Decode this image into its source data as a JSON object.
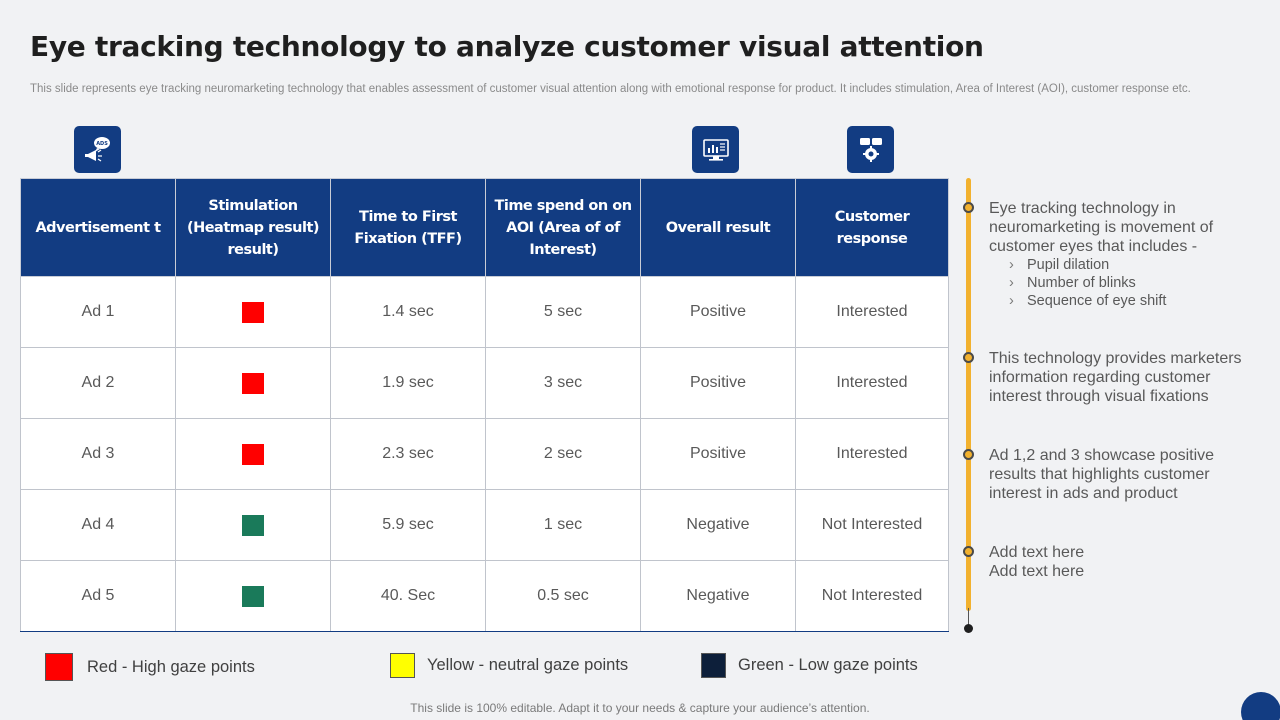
{
  "title": "Eye tracking technology to analyze customer visual attention",
  "subtitle": "This slide represents eye tracking neuromarketing technology that enables assessment of customer visual attention along with emotional response for product. It includes stimulation, Area of Interest (AOI),  customer response etc.",
  "table": {
    "headers": [
      "Advertisement t",
      "Stimulation (Heatmap result) result)",
      "Time to First Fixation (TFF)",
      "Time spend on on AOI (Area of of Interest)",
      "Overall result",
      "Customer response"
    ],
    "rows": [
      {
        "ad": "Ad 1",
        "color": "#ff0000",
        "tff": "1.4 sec",
        "aoi": "5 sec",
        "overall": "Positive",
        "response": "Interested"
      },
      {
        "ad": "Ad 2",
        "color": "#ff0000",
        "tff": "1.9 sec",
        "aoi": "3 sec",
        "overall": "Positive",
        "response": "Interested"
      },
      {
        "ad": "Ad 3",
        "color": "#ff0000",
        "tff": "2.3 sec",
        "aoi": "2 sec",
        "overall": "Positive",
        "response": "Interested"
      },
      {
        "ad": "Ad 4",
        "color": "#1a7a5a",
        "tff": "5.9 sec",
        "aoi": "1 sec",
        "overall": "Negative",
        "response": "Not Interested"
      },
      {
        "ad": "Ad 5",
        "color": "#1a7a5a",
        "tff": "40. Sec",
        "aoi": "0.5 sec",
        "overall": "Negative",
        "response": "Not Interested"
      }
    ]
  },
  "icons": [
    "megaphone-icon",
    "monitor-chart-icon",
    "gear-chat-icon"
  ],
  "timeline": [
    {
      "text": "Eye tracking technology  in neuromarketing is movement of customer eyes that includes -",
      "sub": [
        "Pupil dilation",
        "Number of blinks",
        "Sequence of eye shift"
      ]
    },
    {
      "text": "This technology provides marketers information regarding customer interest through visual fixations"
    },
    {
      "text": "Ad 1,2 and 3 showcase positive results that highlights customer interest in ads and product"
    },
    {
      "text": "Add text here",
      "text2": "Add text here"
    }
  ],
  "legend": [
    {
      "label": "Red - High gaze points",
      "color": "#ff0000"
    },
    {
      "label": "Yellow  - neutral gaze points",
      "color": "#ffff00"
    },
    {
      "label": "Green - Low gaze points",
      "color": "#0d1f3a"
    }
  ],
  "footer": "This slide is 100% editable. Adapt it to your needs & capture your audience’s attention.",
  "colors": {
    "brand_blue": "#123c82",
    "accent_yellow": "#f2b12e",
    "background": "#f1f2f4"
  }
}
